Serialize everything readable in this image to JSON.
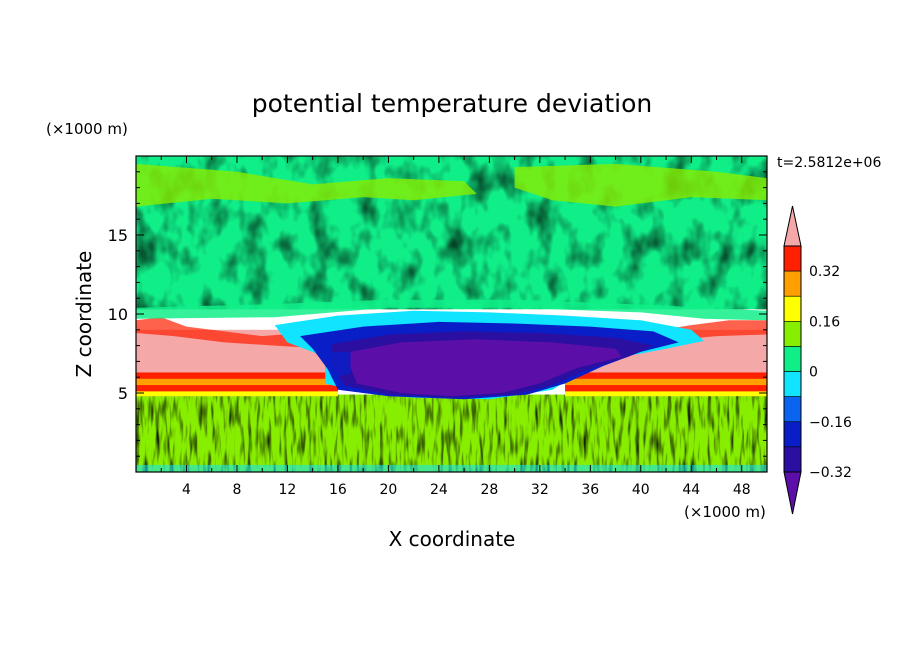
{
  "chart_data": {
    "type": "heatmap",
    "title": "potential temperature deviation",
    "xlabel": "X coordinate",
    "ylabel": "Z coordinate",
    "x_unit": "(×1000 m)",
    "y_unit": "(×1000 m)",
    "time_label": "t=2.5812e+06",
    "xlim": [
      0,
      50
    ],
    "ylim": [
      0,
      20
    ],
    "x_ticks": [
      4,
      8,
      12,
      16,
      20,
      24,
      28,
      32,
      36,
      40,
      44,
      48
    ],
    "y_ticks": [
      5,
      10,
      15
    ],
    "colorbar": {
      "levels": [
        -0.4,
        -0.32,
        -0.24,
        -0.16,
        -0.08,
        0,
        0.08,
        0.16,
        0.24,
        0.32,
        0.4
      ],
      "tick_labels": [
        "0.32",
        "0.16",
        "0",
        "−0.16",
        "−0.32"
      ],
      "tick_values": [
        0.32,
        0.16,
        0,
        -0.16,
        -0.32
      ],
      "colors": [
        "#5b0fa8",
        "#2a0fa0",
        "#0a1ec8",
        "#0a64f0",
        "#10e4ff",
        "#10ee88",
        "#88ee00",
        "#ffff00",
        "#ffa000",
        "#ff2000",
        "#f5a8a8"
      ],
      "extend": "both"
    },
    "regions": [
      {
        "name": "upper-layer",
        "z_range": [
          10.5,
          20
        ],
        "value_range": [
          0,
          0.08
        ]
      },
      {
        "name": "warm-band-left",
        "x_range": [
          0,
          15
        ],
        "z_range": [
          4.8,
          9
        ],
        "value_range": [
          0.24,
          0.4
        ]
      },
      {
        "name": "warm-band-right",
        "x_range": [
          36,
          50
        ],
        "z_range": [
          4.8,
          9
        ],
        "value_range": [
          0.24,
          0.4
        ]
      },
      {
        "name": "cold-pool",
        "x_range": [
          15,
          42
        ],
        "z_range": [
          4.6,
          9
        ],
        "value_range": [
          -0.4,
          -0.24
        ]
      },
      {
        "name": "lower-layer",
        "z_range": [
          0,
          4.8
        ],
        "value_range": [
          -0.08,
          0.08
        ]
      }
    ]
  }
}
